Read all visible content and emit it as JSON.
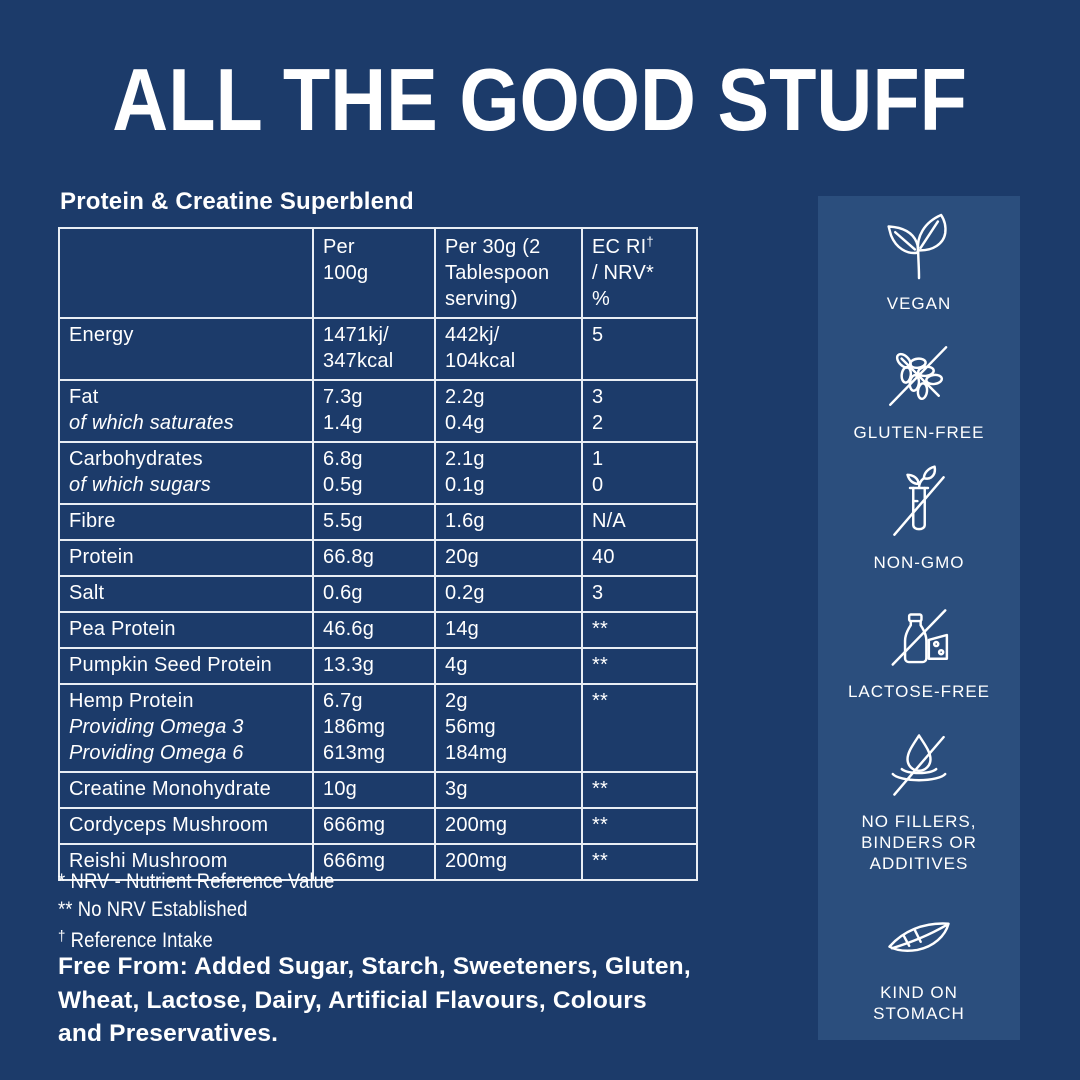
{
  "title": "ALL THE GOOD STUFF",
  "table": {
    "heading": "Protein & Creatine Superblend",
    "columns": [
      [
        ""
      ],
      [
        "Per",
        "100g"
      ],
      [
        "Per 30g (2",
        "Tablespoon",
        "serving)"
      ],
      [
        "EC RI†",
        "/ NRV*",
        "%"
      ]
    ],
    "rows": [
      {
        "name": "Energy",
        "sub": [],
        "per_100g": [
          "1471kj/",
          "347kcal"
        ],
        "per_30g": [
          "442kj/",
          "104kcal"
        ],
        "nrv": [
          "5"
        ]
      },
      {
        "name": "Fat",
        "sub": [
          "of which saturates"
        ],
        "per_100g": [
          "7.3g",
          "1.4g"
        ],
        "per_30g": [
          "2.2g",
          "0.4g"
        ],
        "nrv": [
          "3",
          "2"
        ]
      },
      {
        "name": "Carbohydrates",
        "sub": [
          "of which sugars"
        ],
        "per_100g": [
          "6.8g",
          "0.5g"
        ],
        "per_30g": [
          "2.1g",
          "0.1g"
        ],
        "nrv": [
          "1",
          "0"
        ]
      },
      {
        "name": "Fibre",
        "sub": [],
        "per_100g": [
          "5.5g"
        ],
        "per_30g": [
          "1.6g"
        ],
        "nrv": [
          "N/A"
        ]
      },
      {
        "name": "Protein",
        "sub": [],
        "per_100g": [
          "66.8g"
        ],
        "per_30g": [
          "20g"
        ],
        "nrv": [
          "40"
        ]
      },
      {
        "name": "Salt",
        "sub": [],
        "per_100g": [
          "0.6g"
        ],
        "per_30g": [
          "0.2g"
        ],
        "nrv": [
          "3"
        ]
      },
      {
        "name": "Pea Protein",
        "sub": [],
        "per_100g": [
          "46.6g"
        ],
        "per_30g": [
          "14g"
        ],
        "nrv": [
          "**"
        ]
      },
      {
        "name": "Pumpkin Seed Protein",
        "sub": [],
        "per_100g": [
          "13.3g"
        ],
        "per_30g": [
          "4g"
        ],
        "nrv": [
          "**"
        ]
      },
      {
        "name": "Hemp Protein",
        "sub": [
          "Providing Omega 3",
          "Providing Omega 6"
        ],
        "per_100g": [
          "6.7g",
          "186mg",
          "613mg"
        ],
        "per_30g": [
          "2g",
          "56mg",
          "184mg"
        ],
        "nrv": [
          "**"
        ]
      },
      {
        "name": "Creatine Monohydrate",
        "sub": [],
        "per_100g": [
          "10g"
        ],
        "per_30g": [
          "3g"
        ],
        "nrv": [
          "**"
        ]
      },
      {
        "name": "Cordyceps Mushroom",
        "sub": [],
        "per_100g": [
          "666mg"
        ],
        "per_30g": [
          "200mg"
        ],
        "nrv": [
          "**"
        ]
      },
      {
        "name": "Reishi Mushroom",
        "sub": [],
        "per_100g": [
          "666mg"
        ],
        "per_30g": [
          "200mg"
        ],
        "nrv": [
          "**"
        ]
      }
    ]
  },
  "footnotes": [
    {
      "marker": "*",
      "text": "NRV - Nutrient Reference Value",
      "sup": false
    },
    {
      "marker": "**",
      "text": "No NRV Established",
      "sup": false
    },
    {
      "marker": "†",
      "text": "Reference Intake",
      "sup": true
    }
  ],
  "free_from": "Free From: Added Sugar, Starch, Sweeteners, Gluten,\nWheat, Lactose, Dairy, Artificial Flavours, Colours\nand Preservatives.",
  "badges": [
    {
      "icon": "vegan-icon",
      "label": "VEGAN"
    },
    {
      "icon": "gluten-free-icon",
      "label": "GLUTEN-FREE"
    },
    {
      "icon": "non-gmo-icon",
      "label": "NON-GMO"
    },
    {
      "icon": "lactose-free-icon",
      "label": "LACTOSE-FREE"
    },
    {
      "icon": "no-fillers-icon",
      "label": "NO FILLERS,\nBINDERS OR\nADDITIVES"
    },
    {
      "icon": "kind-on-stomach-icon",
      "label": "KIND ON\nSTOMACH"
    }
  ],
  "colors": {
    "background": "#1C3B6A",
    "panel": "#2B4E7D",
    "text": "#FFFFFF",
    "table_border": "#E9EEF4"
  }
}
